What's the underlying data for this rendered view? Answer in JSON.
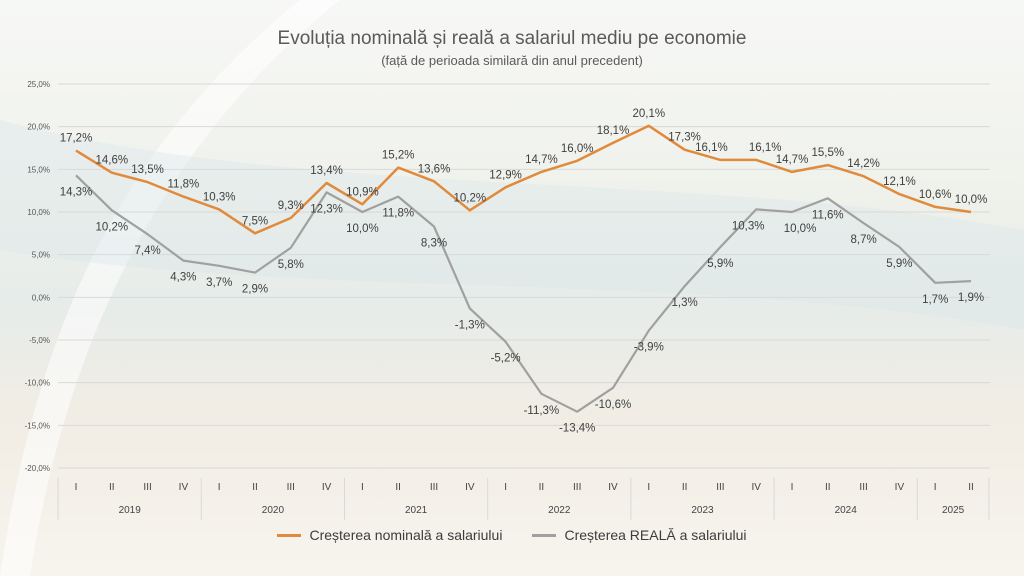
{
  "colors": {
    "nominal": "#e08a3c",
    "real": "#a0a0a0",
    "grid": "#d9d9d9",
    "text": "#404040"
  },
  "chart_data": {
    "type": "line",
    "title": "Evoluția nominală și reală a salariul mediu pe economie",
    "subtitle": "(față de perioada similară din anul precedent)",
    "ylim": [
      -20,
      25
    ],
    "yticks": [
      "-20,0%",
      "-15,0%",
      "-10,0%",
      "-5,0%",
      "0,0%",
      "5,0%",
      "10,0%",
      "15,0%",
      "20,0%",
      "25,0%"
    ],
    "ytick_values": [
      -20,
      -15,
      -10,
      -5,
      0,
      5,
      10,
      15,
      20,
      25
    ],
    "grid": true,
    "legend_position": "bottom",
    "categories": [
      "I",
      "II",
      "III",
      "IV",
      "I",
      "II",
      "III",
      "IV",
      "I",
      "II",
      "III",
      "IV",
      "I",
      "II",
      "III",
      "IV",
      "I",
      "II",
      "III",
      "IV",
      "I",
      "II",
      "III",
      "IV",
      "I",
      "II"
    ],
    "year_groups": [
      {
        "label": "2019",
        "count": 4
      },
      {
        "label": "2020",
        "count": 4
      },
      {
        "label": "2021",
        "count": 4
      },
      {
        "label": "2022",
        "count": 4
      },
      {
        "label": "2023",
        "count": 4
      },
      {
        "label": "2024",
        "count": 4
      },
      {
        "label": "2025",
        "count": 2
      }
    ],
    "series": [
      {
        "name": "Creșterea nominală a salariului",
        "color": "#e08a3c",
        "values": [
          17.2,
          14.6,
          13.5,
          11.8,
          10.3,
          7.5,
          9.3,
          13.4,
          10.9,
          15.2,
          13.6,
          10.2,
          12.9,
          14.7,
          16.0,
          18.1,
          20.1,
          17.3,
          16.1,
          16.1,
          14.7,
          15.5,
          14.2,
          12.1,
          10.6,
          10.0
        ],
        "labels": [
          "17,2%",
          "14,6%",
          "13,5%",
          "11,8%",
          "10,3%",
          "7,5%",
          "9,3%",
          "13,4%",
          "10,9%",
          "15,2%",
          "13,6%",
          "10,2%",
          "12,9%",
          "14,7%",
          "16,0%",
          "18,1%",
          "20,1%",
          "17,3%",
          "16,1%",
          "16,1%",
          "14,7%",
          "15,5%",
          "14,2%",
          "12,1%",
          "10,6%",
          "10,0%"
        ]
      },
      {
        "name": "Creșterea REALĂ a salariului",
        "color": "#a0a0a0",
        "values": [
          14.3,
          10.2,
          7.4,
          4.3,
          3.7,
          2.9,
          5.8,
          12.3,
          10.0,
          11.8,
          8.3,
          -1.3,
          -5.2,
          -11.3,
          -13.4,
          -10.6,
          -3.9,
          1.3,
          5.9,
          10.3,
          10.0,
          11.6,
          8.7,
          5.9,
          1.7,
          1.9
        ],
        "labels": [
          "14,3%",
          "10,2%",
          "7,4%",
          "4,3%",
          "3,7%",
          "2,9%",
          "5,8%",
          "12,3%",
          "10,0%",
          "11,8%",
          "8,3%",
          "-1,3%",
          "-5,2%",
          "-11,3%",
          "-13,4%",
          "-10,6%",
          "-3,9%",
          "1,3%",
          "5,9%",
          "10,3%",
          "10,0%",
          "11,6%",
          "8,7%",
          "5,9%",
          "1,7%",
          "1,9%"
        ]
      }
    ]
  }
}
